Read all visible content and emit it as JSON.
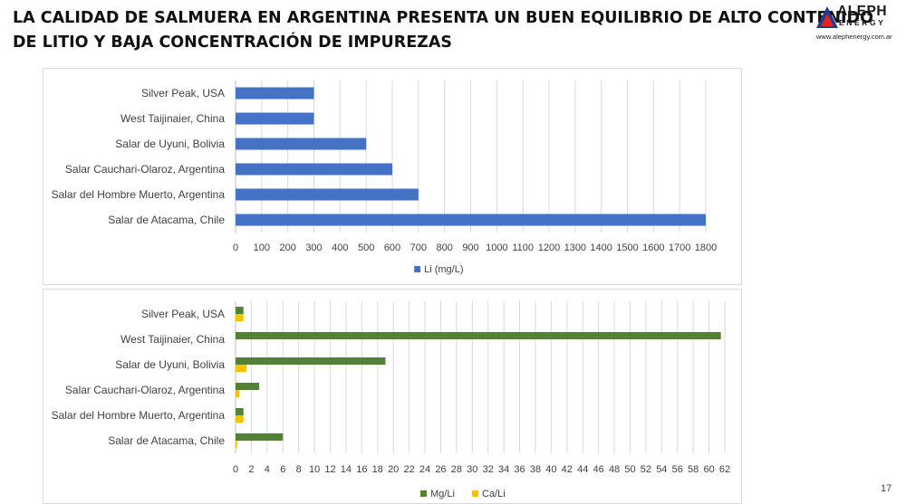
{
  "title": {
    "line1": "LA CALIDAD DE SALMUERA EN ARGENTINA PRESENTA UN BUEN EQUILIBRIO DE ALTO CONTENIDO",
    "line2": "DE LITIO Y BAJA CONCENTRACIÓN DE IMPUREZAS"
  },
  "logo": {
    "name": "ALEPH",
    "sub": "ENERGY",
    "url": "www.alephenergy.com.ar",
    "icon": "triangle-logo-icon",
    "colors": {
      "red": "#e2231a",
      "blue": "#1f3a93"
    }
  },
  "page_number": "17",
  "chart_data": [
    {
      "type": "bar",
      "orientation": "horizontal",
      "categories": [
        "Silver Peak, USA",
        "West Taijinaier, China",
        "Salar de Uyuni, Bolivia",
        "Salar Cauchari-Olaroz, Argentina",
        "Salar del Hombre Muerto, Argentina",
        "Salar de Atacama, Chile"
      ],
      "series": [
        {
          "name": "Li (mg/L)",
          "color": "#4472c4",
          "values": [
            300,
            300,
            500,
            600,
            700,
            1800
          ]
        }
      ],
      "xlim": [
        0,
        1800
      ],
      "ticks": [
        "0",
        "100",
        "200",
        "300",
        "400",
        "500",
        "600",
        "700",
        "800",
        "900",
        "1000",
        "1100",
        "1200",
        "1300",
        "1400",
        "1500",
        "1600",
        "1700",
        "1800"
      ],
      "grid": true,
      "legend": "bottom"
    },
    {
      "type": "bar",
      "orientation": "horizontal",
      "categories": [
        "Silver Peak, USA",
        "West Taijinaier, China",
        "Salar de Uyuni, Bolivia",
        "Salar Cauchari-Olaroz, Argentina",
        "Salar del Hombre Muerto, Argentina",
        "Salar de Atacama, Chile"
      ],
      "series": [
        {
          "name": "Mg/Li",
          "color": "#548235",
          "values": [
            1,
            61.5,
            19,
            3,
            1,
            6
          ]
        },
        {
          "name": "Ca/Li",
          "color": "#ffc000",
          "values": [
            1,
            0,
            1.4,
            0.5,
            1,
            0.2
          ]
        }
      ],
      "xlim": [
        0,
        62
      ],
      "ticks": [
        "0",
        "2",
        "4",
        "6",
        "8",
        "10",
        "12",
        "14",
        "16",
        "18",
        "20",
        "22",
        "24",
        "26",
        "28",
        "30",
        "32",
        "34",
        "36",
        "38",
        "40",
        "42",
        "44",
        "46",
        "48",
        "50",
        "52",
        "54",
        "56",
        "58",
        "60",
        "62"
      ],
      "grid": true,
      "legend": "bottom"
    }
  ]
}
